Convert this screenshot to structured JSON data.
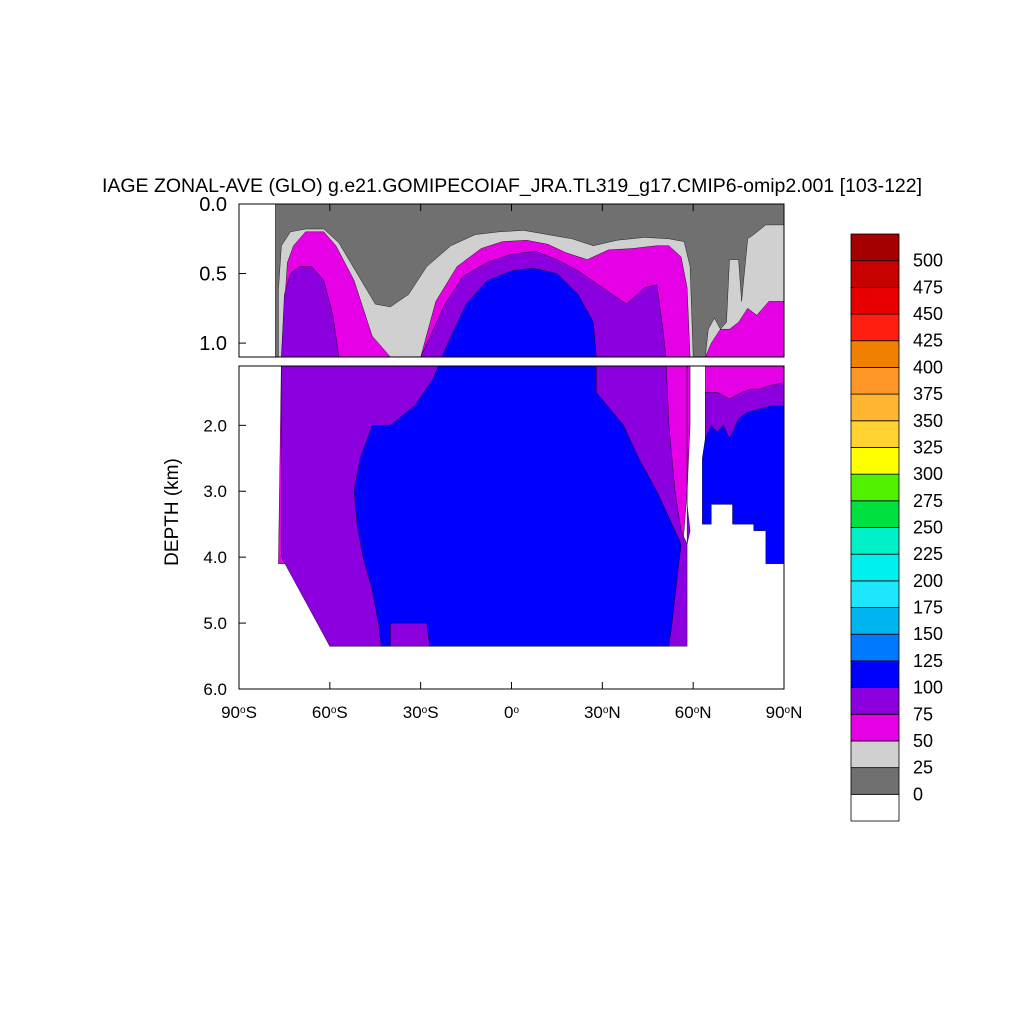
{
  "chart_data": {
    "type": "contour",
    "title": "IAGE ZONAL-AVE (GLO) g.e21.GOMIPECOIAF_JRA.TL319_g17.CMIP6-omip2.001 [103-122]",
    "ylabel": "DEPTH (km)",
    "xlim": [
      -90,
      90
    ],
    "ylim": [
      0,
      6
    ],
    "upper_panel_ylim": [
      0,
      1.1
    ],
    "lower_panel_ylim": [
      1.1,
      6
    ],
    "x_ticks": [
      -90,
      -60,
      -30,
      0,
      30,
      60,
      90
    ],
    "x_tick_labels": [
      "90",
      "60",
      "30",
      "0",
      "30",
      "60",
      "90"
    ],
    "x_tick_suffixes": [
      "S",
      "S",
      "S",
      "",
      "N",
      "N",
      "N"
    ],
    "upper_y_ticks": [
      0.0,
      0.5,
      1.0
    ],
    "upper_y_tick_labels": [
      "0.0",
      "0.5",
      "1.0"
    ],
    "lower_y_ticks": [
      2.0,
      3.0,
      4.0,
      5.0,
      6.0
    ],
    "lower_y_tick_labels": [
      "2.0",
      "3.0",
      "4.0",
      "5.0",
      "6.0"
    ],
    "colorbar": {
      "levels": [
        0,
        25,
        50,
        75,
        100,
        125,
        150,
        175,
        200,
        225,
        250,
        275,
        300,
        325,
        350,
        375,
        400,
        425,
        450,
        475,
        500
      ],
      "labels": [
        "0",
        "25",
        "50",
        "75",
        "100",
        "125",
        "150",
        "175",
        "200",
        "225",
        "250",
        "275",
        "300",
        "325",
        "350",
        "375",
        "400",
        "425",
        "450",
        "475",
        "500"
      ],
      "colors": [
        "#ffffff",
        "#707070",
        "#d0d0d0",
        "#e600e6",
        "#8c00e0",
        "#0000ff",
        "#0078ff",
        "#00b4f0",
        "#1ee6ff",
        "#00f0f0",
        "#00f0c8",
        "#00e040",
        "#50f000",
        "#ffff00",
        "#ffd232",
        "#ffb432",
        "#ff9628",
        "#f08000",
        "#ff1e0f",
        "#e60000",
        "#c80000",
        "#a50000"
      ]
    },
    "regions": [
      {
        "name": "0-25",
        "level": 0,
        "color": "#707070",
        "outline": [
          [
            -78,
            0
          ],
          [
            90,
            0
          ],
          [
            90,
            1.1
          ],
          [
            -78,
            1.1
          ]
        ]
      },
      {
        "name": "25-50",
        "level": 50,
        "color": "#d0d0d0",
        "outline": [
          [
            -77,
            1.1
          ],
          [
            -77,
            0.62
          ],
          [
            -76,
            0.3
          ],
          [
            -73,
            0.2
          ],
          [
            -68,
            0.18
          ],
          [
            -62,
            0.18
          ],
          [
            -57,
            0.28
          ],
          [
            -51,
            0.5
          ],
          [
            -45,
            0.72
          ],
          [
            -40,
            0.74
          ],
          [
            -34,
            0.65
          ],
          [
            -28,
            0.45
          ],
          [
            -20,
            0.3
          ],
          [
            -12,
            0.22
          ],
          [
            -4,
            0.2
          ],
          [
            4,
            0.19
          ],
          [
            12,
            0.22
          ],
          [
            20,
            0.25
          ],
          [
            27,
            0.3
          ],
          [
            35,
            0.26
          ],
          [
            44,
            0.24
          ],
          [
            52,
            0.25
          ],
          [
            57,
            0.27
          ],
          [
            59,
            0.45
          ],
          [
            60,
            1.1
          ]
        ]
      },
      {
        "name": "25-50-north",
        "level": 50,
        "color": "#d0d0d0",
        "outline": [
          [
            64,
            1.1
          ],
          [
            65,
            0.9
          ],
          [
            67,
            0.82
          ],
          [
            69,
            0.9
          ],
          [
            71,
            0.85
          ],
          [
            72,
            0.4
          ],
          [
            75,
            0.4
          ],
          [
            76,
            0.7
          ],
          [
            78,
            0.25
          ],
          [
            80,
            0.22
          ],
          [
            84,
            0.15
          ],
          [
            90,
            0.15
          ],
          [
            90,
            1.1
          ]
        ]
      },
      {
        "name": "50-75",
        "level": 75,
        "color": "#e600e6",
        "outline": [
          [
            -77,
            4.1
          ],
          [
            -76,
            1.1
          ],
          [
            -75,
            0.75
          ],
          [
            -74,
            0.42
          ],
          [
            -72,
            0.3
          ],
          [
            -68,
            0.2
          ],
          [
            -62,
            0.2
          ],
          [
            -58,
            0.3
          ],
          [
            -52,
            0.55
          ],
          [
            -46,
            0.95
          ],
          [
            -40,
            1.1
          ],
          [
            -30,
            1.1
          ],
          [
            -25,
            0.7
          ],
          [
            -18,
            0.45
          ],
          [
            -10,
            0.32
          ],
          [
            -3,
            0.27
          ],
          [
            5,
            0.26
          ],
          [
            12,
            0.29
          ],
          [
            18,
            0.35
          ],
          [
            25,
            0.4
          ],
          [
            32,
            0.33
          ],
          [
            40,
            0.32
          ],
          [
            48,
            0.3
          ],
          [
            52,
            0.3
          ],
          [
            56,
            0.38
          ],
          [
            58,
            0.6
          ],
          [
            59,
            1.1
          ],
          [
            59,
            2.0
          ],
          [
            58,
            3.0
          ],
          [
            57,
            3.6
          ],
          [
            55,
            4.5
          ],
          [
            52,
            5.35
          ],
          [
            -60,
            5.35
          ],
          [
            -64,
            5.0
          ],
          [
            -68,
            4.5
          ],
          [
            -72,
            4.1
          ]
        ]
      },
      {
        "name": "50-75-north",
        "level": 75,
        "color": "#e600e6",
        "outline": [
          [
            64,
            1.1
          ],
          [
            66,
            1.0
          ],
          [
            69,
            0.9
          ],
          [
            72,
            0.9
          ],
          [
            75,
            0.85
          ],
          [
            78,
            0.75
          ],
          [
            81,
            0.8
          ],
          [
            85,
            0.7
          ],
          [
            90,
            0.7
          ],
          [
            90,
            2.5
          ],
          [
            64,
            2.5
          ]
        ]
      },
      {
        "name": "75-100",
        "level": 100,
        "color": "#8c00e0",
        "outline": [
          [
            -76,
            1.1
          ],
          [
            -75,
            0.65
          ],
          [
            -73,
            0.5
          ],
          [
            -70,
            0.45
          ],
          [
            -66,
            0.45
          ],
          [
            -62,
            0.55
          ],
          [
            -59,
            0.8
          ],
          [
            -57,
            1.1
          ],
          [
            -50,
            1.1
          ],
          [
            -40,
            1.1
          ],
          [
            -36,
            1.1
          ],
          [
            -30,
            1.1
          ],
          [
            -22,
            0.72
          ],
          [
            -16,
            0.52
          ],
          [
            -8,
            0.42
          ],
          [
            0,
            0.36
          ],
          [
            8,
            0.34
          ],
          [
            15,
            0.4
          ],
          [
            22,
            0.48
          ],
          [
            30,
            0.6
          ],
          [
            38,
            0.72
          ],
          [
            44,
            0.6
          ],
          [
            48,
            0.58
          ],
          [
            50,
            0.9
          ],
          [
            51,
            1.1
          ],
          [
            52,
            2.0
          ],
          [
            54,
            3.0
          ],
          [
            56,
            3.6
          ],
          [
            58,
            3.8
          ],
          [
            59,
            3.6
          ],
          [
            58,
            3.2
          ],
          [
            58,
            2.0
          ],
          [
            58,
            1.1
          ],
          [
            58,
            5.35
          ],
          [
            -60,
            5.35
          ],
          [
            -76,
            4.0
          ]
        ]
      },
      {
        "name": "75-100-north",
        "level": 100,
        "color": "#8c00e0",
        "outline": [
          [
            64,
            1.5
          ],
          [
            68,
            1.5
          ],
          [
            72,
            1.6
          ],
          [
            76,
            1.5
          ],
          [
            79,
            1.45
          ],
          [
            82,
            1.45
          ],
          [
            85,
            1.4
          ],
          [
            90,
            1.35
          ],
          [
            90,
            2.5
          ],
          [
            64,
            2.5
          ]
        ]
      },
      {
        "name": "100-125",
        "level": 125,
        "color": "#0000ff",
        "outline": [
          [
            -23,
            1.1
          ],
          [
            -26,
            1.3
          ],
          [
            -32,
            1.7
          ],
          [
            -40,
            2.0
          ],
          [
            -46,
            2.0
          ],
          [
            -50,
            2.5
          ],
          [
            -52,
            3.0
          ],
          [
            -51,
            3.5
          ],
          [
            -49,
            4.0
          ],
          [
            -46,
            4.5
          ],
          [
            -44,
            5.0
          ],
          [
            -43,
            5.35
          ],
          [
            -40,
            5.35
          ],
          [
            -40,
            5.0
          ],
          [
            -28,
            5.0
          ],
          [
            -27,
            5.35
          ],
          [
            52,
            5.35
          ],
          [
            53,
            5.0
          ],
          [
            55,
            4.2
          ],
          [
            56,
            3.8
          ],
          [
            52,
            3.4
          ],
          [
            48,
            3.0
          ],
          [
            42,
            2.5
          ],
          [
            37,
            2.0
          ],
          [
            28,
            1.5
          ],
          [
            28,
            1.1
          ],
          [
            27,
            0.85
          ],
          [
            22,
            0.65
          ],
          [
            15,
            0.5
          ],
          [
            7,
            0.46
          ],
          [
            0,
            0.48
          ],
          [
            -8,
            0.55
          ],
          [
            -15,
            0.72
          ],
          [
            -20,
            0.95
          ]
        ]
      },
      {
        "name": "100-125-north",
        "level": 125,
        "color": "#0000ff",
        "outline": [
          [
            63,
            2.5
          ],
          [
            64,
            2.2
          ],
          [
            66,
            2.0
          ],
          [
            68,
            2.1
          ],
          [
            70,
            2.0
          ],
          [
            72,
            2.2
          ],
          [
            75,
            1.9
          ],
          [
            78,
            1.8
          ],
          [
            82,
            1.75
          ],
          [
            86,
            1.7
          ],
          [
            90,
            1.7
          ],
          [
            90,
            4.1
          ],
          [
            84,
            4.1
          ],
          [
            84,
            3.6
          ],
          [
            80,
            3.6
          ],
          [
            80,
            3.5
          ],
          [
            73,
            3.5
          ],
          [
            73,
            3.2
          ],
          [
            66,
            3.2
          ],
          [
            66,
            3.5
          ],
          [
            63,
            3.5
          ]
        ]
      }
    ]
  }
}
